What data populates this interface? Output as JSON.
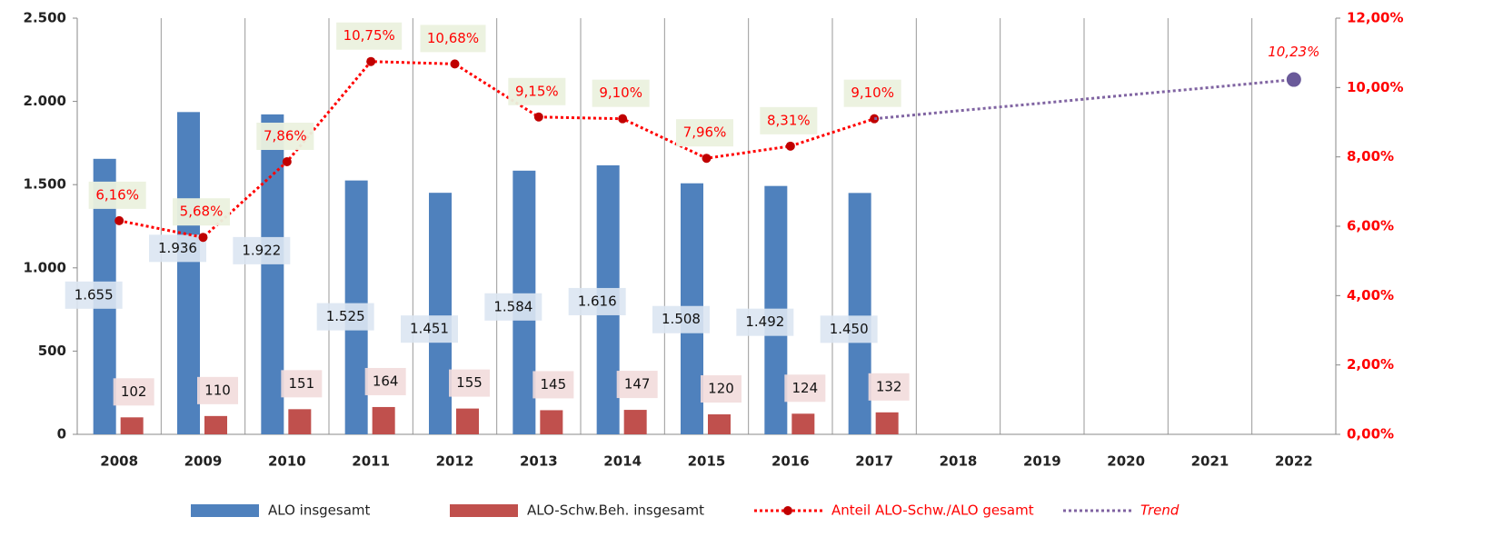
{
  "chart_data": {
    "type": "bar",
    "categories": [
      "2008",
      "2009",
      "2010",
      "2011",
      "2012",
      "2013",
      "2014",
      "2015",
      "2016",
      "2017",
      "2018",
      "2019",
      "2020",
      "2021",
      "2022"
    ],
    "series": [
      {
        "name": "ALO insgesamt",
        "type": "bar",
        "color": "#4f81bd",
        "values": [
          1655,
          1936,
          1922,
          1525,
          1451,
          1584,
          1616,
          1508,
          1492,
          1450,
          null,
          null,
          null,
          null,
          null
        ],
        "value_labels": [
          "1.655",
          "1.936",
          "1.922",
          "1.525",
          "1.451",
          "1.584",
          "1.616",
          "1.508",
          "1.492",
          "1.450",
          null,
          null,
          null,
          null,
          null
        ]
      },
      {
        "name": "ALO-Schw.Beh. insgesamt",
        "type": "bar",
        "color": "#c0504d",
        "values": [
          102,
          110,
          151,
          164,
          155,
          145,
          147,
          120,
          124,
          132,
          null,
          null,
          null,
          null,
          null
        ]
      },
      {
        "name": "Anteil ALO-Schw./ALO gesamt",
        "type": "line",
        "axis": "y2",
        "color": "#ff0000",
        "values": [
          6.16,
          5.68,
          7.86,
          10.75,
          10.68,
          9.15,
          9.1,
          7.96,
          8.31,
          9.1,
          null,
          null,
          null,
          null,
          null
        ],
        "value_labels": [
          "6,16%",
          "5,68%",
          "7,86%",
          "10,75%",
          "10,68%",
          "9,15%",
          "9,10%",
          "7,96%",
          "8,31%",
          "9,10%",
          null,
          null,
          null,
          null,
          null
        ]
      },
      {
        "name": "Trend",
        "type": "line",
        "axis": "y2",
        "color": "#8064a2",
        "values": [
          null,
          null,
          null,
          null,
          null,
          null,
          null,
          null,
          null,
          9.1,
          9.33,
          9.55,
          9.78,
          10.0,
          10.23
        ],
        "value_labels": [
          null,
          null,
          null,
          null,
          null,
          null,
          null,
          null,
          null,
          null,
          null,
          null,
          null,
          null,
          "10,23%"
        ]
      }
    ],
    "ylim": [
      0,
      2500
    ],
    "yticks": [
      0,
      500,
      {
        "value": 1000,
        "label": "1.000"
      },
      {
        "value": 1500,
        "label": "1.500"
      },
      {
        "value": 2000,
        "label": "2.000"
      },
      {
        "value": 2500,
        "label": "2.500"
      }
    ],
    "y2lim": [
      0,
      12
    ],
    "y2ticks": [
      {
        "value": 0,
        "label": "0,00%"
      },
      {
        "value": 2,
        "label": "2,00%"
      },
      {
        "value": 4,
        "label": "4,00%"
      },
      {
        "value": 6,
        "label": "6,00%"
      },
      {
        "value": 8,
        "label": "8,00%"
      },
      {
        "value": 10,
        "label": "10,00%"
      },
      {
        "value": 12,
        "label": "12,00%"
      }
    ],
    "grid": true,
    "legend": "bottom"
  }
}
